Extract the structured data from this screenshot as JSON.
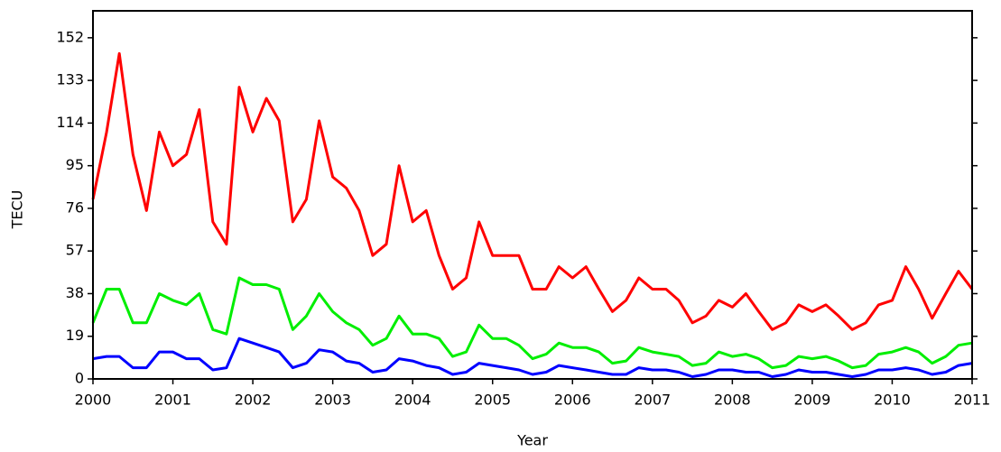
{
  "chart_data": {
    "type": "line",
    "x_label": "Year",
    "y_label": "TECU",
    "x": [
      2000,
      2000.17,
      2000.33,
      2000.5,
      2000.67,
      2000.83,
      2001,
      2001.17,
      2001.33,
      2001.5,
      2001.67,
      2001.83,
      2002,
      2002.17,
      2002.33,
      2002.5,
      2002.67,
      2002.83,
      2003,
      2003.17,
      2003.33,
      2003.5,
      2003.67,
      2003.83,
      2004,
      2004.17,
      2004.33,
      2004.5,
      2004.67,
      2004.83,
      2005,
      2005.17,
      2005.33,
      2005.5,
      2005.67,
      2005.83,
      2006,
      2006.17,
      2006.33,
      2006.5,
      2006.67,
      2006.83,
      2007,
      2007.17,
      2007.33,
      2007.5,
      2007.67,
      2007.83,
      2008,
      2008.17,
      2008.33,
      2008.5,
      2008.67,
      2008.83,
      2009,
      2009.17,
      2009.33,
      2009.5,
      2009.67,
      2009.83,
      2010,
      2010.17,
      2010.33,
      2010.5,
      2010.67,
      2010.83,
      2011
    ],
    "series": [
      {
        "color": "#ff0000",
        "values": [
          80,
          110,
          145,
          100,
          75,
          110,
          95,
          100,
          120,
          70,
          60,
          130,
          110,
          125,
          115,
          70,
          80,
          115,
          90,
          85,
          75,
          55,
          60,
          95,
          70,
          75,
          55,
          40,
          45,
          70,
          55,
          55,
          55,
          40,
          40,
          50,
          45,
          50,
          40,
          30,
          35,
          45,
          40,
          40,
          35,
          25,
          28,
          35,
          32,
          38,
          30,
          22,
          25,
          33,
          30,
          33,
          28,
          22,
          25,
          33,
          35,
          50,
          40,
          27,
          38,
          48,
          40
        ]
      },
      {
        "color": "#00ee00",
        "values": [
          25,
          40,
          40,
          25,
          25,
          38,
          35,
          33,
          38,
          22,
          20,
          45,
          42,
          42,
          40,
          22,
          28,
          38,
          30,
          25,
          22,
          15,
          18,
          28,
          20,
          20,
          18,
          10,
          12,
          24,
          18,
          18,
          15,
          9,
          11,
          16,
          14,
          14,
          12,
          7,
          8,
          14,
          12,
          11,
          10,
          6,
          7,
          12,
          10,
          11,
          9,
          5,
          6,
          10,
          9,
          10,
          8,
          5,
          6,
          11,
          12,
          14,
          12,
          7,
          10,
          15,
          16
        ]
      },
      {
        "color": "#0000ff",
        "values": [
          9,
          10,
          10,
          5,
          5,
          12,
          12,
          9,
          9,
          4,
          5,
          18,
          16,
          14,
          12,
          5,
          7,
          13,
          12,
          8,
          7,
          3,
          4,
          9,
          8,
          6,
          5,
          2,
          3,
          7,
          6,
          5,
          4,
          2,
          3,
          6,
          5,
          4,
          3,
          2,
          2,
          5,
          4,
          4,
          3,
          1,
          2,
          4,
          4,
          3,
          3,
          1,
          2,
          4,
          3,
          3,
          2,
          1,
          2,
          4,
          4,
          5,
          4,
          2,
          3,
          6,
          7
        ]
      }
    ],
    "xlim": [
      2000,
      2011
    ],
    "xticks": [
      2000,
      2001,
      2002,
      2003,
      2004,
      2005,
      2006,
      2007,
      2008,
      2009,
      2010,
      2011
    ],
    "ylim": [
      0,
      164
    ],
    "yticks": [
      0,
      19,
      38,
      57,
      76,
      95,
      114,
      133,
      152
    ],
    "grid": false
  }
}
